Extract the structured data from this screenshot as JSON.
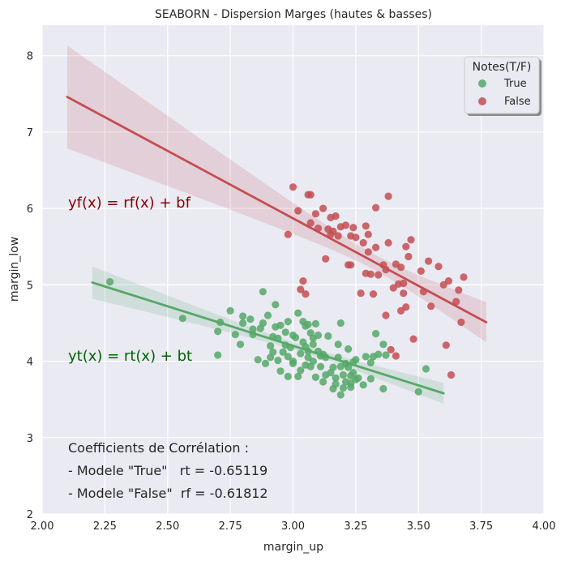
{
  "chart_data": {
    "type": "scatter",
    "title": "SEABORN - Dispersion Marges (hautes & basses)",
    "xlabel": "margin_up",
    "ylabel": "margin_low",
    "xlim": [
      2.0,
      4.0
    ],
    "ylim": [
      2.0,
      8.4
    ],
    "xticks": [
      "2.00",
      "2.25",
      "2.50",
      "2.75",
      "3.00",
      "3.25",
      "3.50",
      "3.75",
      "4.00"
    ],
    "yticks": [
      "2",
      "3",
      "4",
      "5",
      "6",
      "7",
      "8"
    ],
    "grid": true,
    "legend": {
      "title": "Notes(T/F)",
      "position": "top-right",
      "entries": [
        "True",
        "False"
      ]
    },
    "colors": {
      "true": "#55a868",
      "false": "#c44e52",
      "background": "#eaeaf2",
      "grid": "#ffffff",
      "true_text": "#006400",
      "false_text": "#8b0000"
    },
    "annotations": {
      "false_equation": "yf(x) = rf(x) + bf",
      "true_equation": "yt(x) = rt(x) + bt",
      "corr_title": "Coefficients de Corrélation :",
      "corr_true": "- Modele \"True\"   rt = -0.65119",
      "corr_false": "- Modele \"False\"  rf = -0.61812"
    },
    "series": [
      {
        "name": "True",
        "points": [
          [
            2.27,
            5.04
          ],
          [
            2.56,
            4.56
          ],
          [
            2.7,
            4.08
          ],
          [
            2.7,
            4.39
          ],
          [
            2.71,
            4.51
          ],
          [
            2.75,
            4.66
          ],
          [
            2.77,
            4.35
          ],
          [
            2.79,
            4.22
          ],
          [
            2.8,
            4.5
          ],
          [
            2.8,
            4.59
          ],
          [
            2.83,
            4.55
          ],
          [
            2.84,
            4.42
          ],
          [
            2.84,
            4.35
          ],
          [
            2.86,
            4.02
          ],
          [
            2.87,
            4.43
          ],
          [
            2.88,
            4.5
          ],
          [
            2.88,
            4.91
          ],
          [
            2.89,
            3.97
          ],
          [
            2.9,
            4.6
          ],
          [
            2.91,
            4.2
          ],
          [
            2.91,
            4.05
          ],
          [
            2.92,
            4.12
          ],
          [
            2.92,
            4.32
          ],
          [
            2.93,
            4.74
          ],
          [
            2.93,
            4.45
          ],
          [
            2.94,
            4.01
          ],
          [
            2.94,
            4.3
          ],
          [
            2.95,
            4.47
          ],
          [
            2.95,
            3.87
          ],
          [
            2.96,
            4.12
          ],
          [
            2.97,
            4.38
          ],
          [
            2.97,
            4.21
          ],
          [
            2.98,
            3.8
          ],
          [
            2.98,
            4.06
          ],
          [
            2.98,
            4.52
          ],
          [
            2.99,
            4.18
          ],
          [
            3.0,
            4.0
          ],
          [
            3.0,
            4.34
          ],
          [
            3.0,
            3.97
          ],
          [
            3.01,
            4.31
          ],
          [
            3.02,
            4.63
          ],
          [
            3.02,
            3.8
          ],
          [
            3.03,
            4.1
          ],
          [
            3.03,
            3.88
          ],
          [
            3.04,
            4.25
          ],
          [
            3.04,
            4.52
          ],
          [
            3.05,
            4.19
          ],
          [
            3.05,
            3.95
          ],
          [
            3.05,
            4.46
          ],
          [
            3.06,
            4.48
          ],
          [
            3.06,
            4.05
          ],
          [
            3.06,
            4.13
          ],
          [
            3.07,
            4.37
          ],
          [
            3.07,
            3.93
          ],
          [
            3.08,
            4.3
          ],
          [
            3.08,
            4.0
          ],
          [
            3.08,
            4.22
          ],
          [
            3.09,
            3.79
          ],
          [
            3.09,
            4.49
          ],
          [
            3.1,
            4.34
          ],
          [
            3.1,
            4.13
          ],
          [
            3.11,
            4.07
          ],
          [
            3.11,
            3.93
          ],
          [
            3.12,
            4.09
          ],
          [
            3.12,
            3.73
          ],
          [
            3.13,
            4.05
          ],
          [
            3.13,
            3.82
          ],
          [
            3.14,
            4.33
          ],
          [
            3.15,
            3.85
          ],
          [
            3.16,
            3.92
          ],
          [
            3.16,
            3.64
          ],
          [
            3.17,
            3.78
          ],
          [
            3.17,
            3.7
          ],
          [
            3.18,
            4.22
          ],
          [
            3.18,
            4.05
          ],
          [
            3.19,
            3.93
          ],
          [
            3.19,
            3.56
          ],
          [
            3.19,
            4.5
          ],
          [
            3.2,
            3.65
          ],
          [
            3.2,
            3.82
          ],
          [
            3.21,
            3.73
          ],
          [
            3.21,
            3.97
          ],
          [
            3.22,
            4.16
          ],
          [
            3.22,
            3.92
          ],
          [
            3.23,
            3.71
          ],
          [
            3.23,
            3.66
          ],
          [
            3.23,
            3.81
          ],
          [
            3.24,
            3.99
          ],
          [
            3.24,
            3.85
          ],
          [
            3.25,
            4.02
          ],
          [
            3.25,
            3.76
          ],
          [
            3.26,
            3.78
          ],
          [
            3.28,
            3.69
          ],
          [
            3.29,
            4.06
          ],
          [
            3.31,
            3.77
          ],
          [
            3.31,
            3.98
          ],
          [
            3.32,
            4.06
          ],
          [
            3.33,
            4.36
          ],
          [
            3.34,
            4.09
          ],
          [
            3.36,
            3.64
          ],
          [
            3.36,
            4.22
          ],
          [
            3.37,
            4.08
          ],
          [
            3.5,
            3.6
          ],
          [
            3.53,
            3.9
          ]
        ],
        "fit_line": {
          "x": [
            2.2,
            3.6
          ],
          "y": [
            5.03,
            3.58
          ]
        }
      },
      {
        "name": "False",
        "points": [
          [
            2.98,
            5.66
          ],
          [
            3.0,
            6.28
          ],
          [
            3.02,
            5.97
          ],
          [
            3.03,
            4.94
          ],
          [
            3.04,
            5.05
          ],
          [
            3.05,
            4.88
          ],
          [
            3.06,
            6.18
          ],
          [
            3.07,
            6.18
          ],
          [
            3.07,
            5.81
          ],
          [
            3.09,
            5.93
          ],
          [
            3.1,
            5.74
          ],
          [
            3.12,
            6.0
          ],
          [
            3.13,
            5.34
          ],
          [
            3.14,
            5.73
          ],
          [
            3.15,
            5.66
          ],
          [
            3.15,
            5.88
          ],
          [
            3.16,
            5.7
          ],
          [
            3.17,
            5.9
          ],
          [
            3.18,
            5.64
          ],
          [
            3.19,
            5.76
          ],
          [
            3.21,
            5.78
          ],
          [
            3.22,
            5.26
          ],
          [
            3.23,
            5.64
          ],
          [
            3.23,
            5.26
          ],
          [
            3.24,
            5.75
          ],
          [
            3.25,
            5.62
          ],
          [
            3.27,
            4.89
          ],
          [
            3.28,
            5.55
          ],
          [
            3.29,
            5.15
          ],
          [
            3.29,
            5.77
          ],
          [
            3.3,
            5.66
          ],
          [
            3.3,
            5.43
          ],
          [
            3.31,
            5.14
          ],
          [
            3.32,
            4.88
          ],
          [
            3.33,
            5.49
          ],
          [
            3.33,
            6.01
          ],
          [
            3.34,
            5.13
          ],
          [
            3.36,
            5.26
          ],
          [
            3.37,
            4.6
          ],
          [
            3.37,
            5.2
          ],
          [
            3.38,
            6.16
          ],
          [
            3.38,
            5.55
          ],
          [
            3.39,
            4.15
          ],
          [
            3.4,
            4.96
          ],
          [
            3.41,
            4.07
          ],
          [
            3.41,
            5.27
          ],
          [
            3.42,
            5.01
          ],
          [
            3.43,
            4.66
          ],
          [
            3.43,
            5.23
          ],
          [
            3.44,
            4.89
          ],
          [
            3.44,
            5.02
          ],
          [
            3.45,
            4.71
          ],
          [
            3.45,
            5.5
          ],
          [
            3.46,
            5.37
          ],
          [
            3.47,
            5.59
          ],
          [
            3.48,
            4.29
          ],
          [
            3.51,
            5.18
          ],
          [
            3.52,
            4.91
          ],
          [
            3.54,
            5.31
          ],
          [
            3.55,
            4.72
          ],
          [
            3.58,
            5.24
          ],
          [
            3.6,
            5.0
          ],
          [
            3.61,
            4.21
          ],
          [
            3.62,
            5.05
          ],
          [
            3.63,
            3.82
          ],
          [
            3.65,
            4.78
          ],
          [
            3.66,
            4.93
          ],
          [
            3.67,
            4.51
          ],
          [
            3.68,
            5.1
          ]
        ],
        "fit_line": {
          "x": [
            2.1,
            3.77
          ],
          "y": [
            7.46,
            4.51
          ]
        }
      }
    ]
  }
}
